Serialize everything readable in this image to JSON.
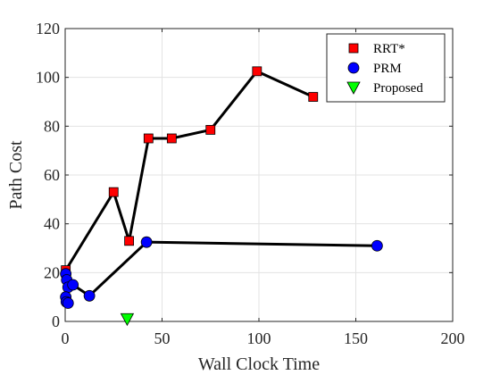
{
  "chart_data": {
    "type": "line",
    "xlabel": "Wall Clock Time",
    "ylabel": "Path Cost",
    "xlim": [
      0,
      200
    ],
    "ylim": [
      0,
      120
    ],
    "xticks": [
      0,
      50,
      100,
      150,
      200
    ],
    "yticks": [
      0,
      20,
      40,
      60,
      80,
      100,
      120
    ],
    "grid": true,
    "legend_position": "top-right",
    "series": [
      {
        "name": "RRT*",
        "marker": "square",
        "color": "#ff0000",
        "line_color": "#000000",
        "connected": true,
        "x": [
          0.3,
          25,
          33,
          43,
          55,
          75,
          99,
          128
        ],
        "y": [
          21,
          53,
          33,
          75,
          75,
          78.5,
          102.5,
          92
        ]
      },
      {
        "name": "PRM",
        "marker": "circle",
        "color": "#0000ff",
        "line_color": "#000000",
        "connected": true,
        "x": [
          0.3,
          0.8,
          1.5,
          4,
          12.5,
          42,
          161,
          0.3,
          0.6,
          1.5
        ],
        "y": [
          19.5,
          17,
          14,
          15,
          10.5,
          32.5,
          31,
          10,
          8,
          7.5
        ],
        "line_order": [
          0,
          1,
          2,
          3,
          4,
          5,
          6
        ]
      },
      {
        "name": "Proposed",
        "marker": "triangle-down",
        "color": "#00ff00",
        "connected": false,
        "x": [
          32
        ],
        "y": [
          1
        ]
      }
    ]
  }
}
